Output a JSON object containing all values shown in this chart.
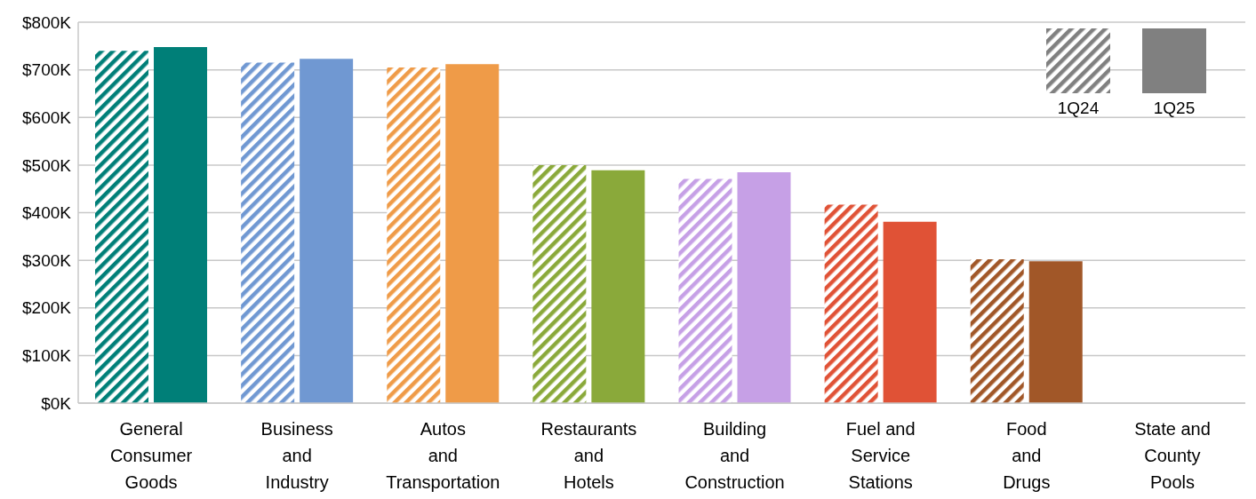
{
  "chart_data": {
    "type": "bar",
    "categories": [
      "General\nConsumer\nGoods",
      "Business\nand\nIndustry",
      "Autos\nand\nTransportation",
      "Restaurants\nand\nHotels",
      "Building\nand\nConstruction",
      "Fuel and\nService\nStations",
      "Food\nand\nDrugs",
      "State and\nCounty\nPools"
    ],
    "series": [
      {
        "name": "1Q24",
        "color": "#808080",
        "colors": [
          "#007f78",
          "#7098d2",
          "#ef9b48",
          "#8aa93a",
          "#c6a0e6",
          "#e05236",
          "#a15728",
          "#808080"
        ],
        "values": [
          740,
          715,
          705,
          500,
          471,
          417,
          302,
          null
        ]
      },
      {
        "name": "1Q25",
        "color": "#808080",
        "colors": [
          "#007f78",
          "#7098d2",
          "#ef9b48",
          "#8aa93a",
          "#c6a0e6",
          "#e05236",
          "#a15728",
          "#808080"
        ],
        "values": [
          748,
          723,
          712,
          489,
          485,
          381,
          298,
          null
        ]
      }
    ],
    "ylim": [
      0,
      800
    ],
    "yticks": [
      {
        "value": 0,
        "label": "$0K"
      },
      {
        "value": 100,
        "label": "$100K"
      },
      {
        "value": 200,
        "label": "$200K"
      },
      {
        "value": 300,
        "label": "$300K"
      },
      {
        "value": 400,
        "label": "$400K"
      },
      {
        "value": 500,
        "label": "$500K"
      },
      {
        "value": 600,
        "label": "$600K"
      },
      {
        "value": 700,
        "label": "$700K"
      },
      {
        "value": 800,
        "label": "$800K"
      }
    ],
    "grid": "y",
    "legend": "top right"
  }
}
